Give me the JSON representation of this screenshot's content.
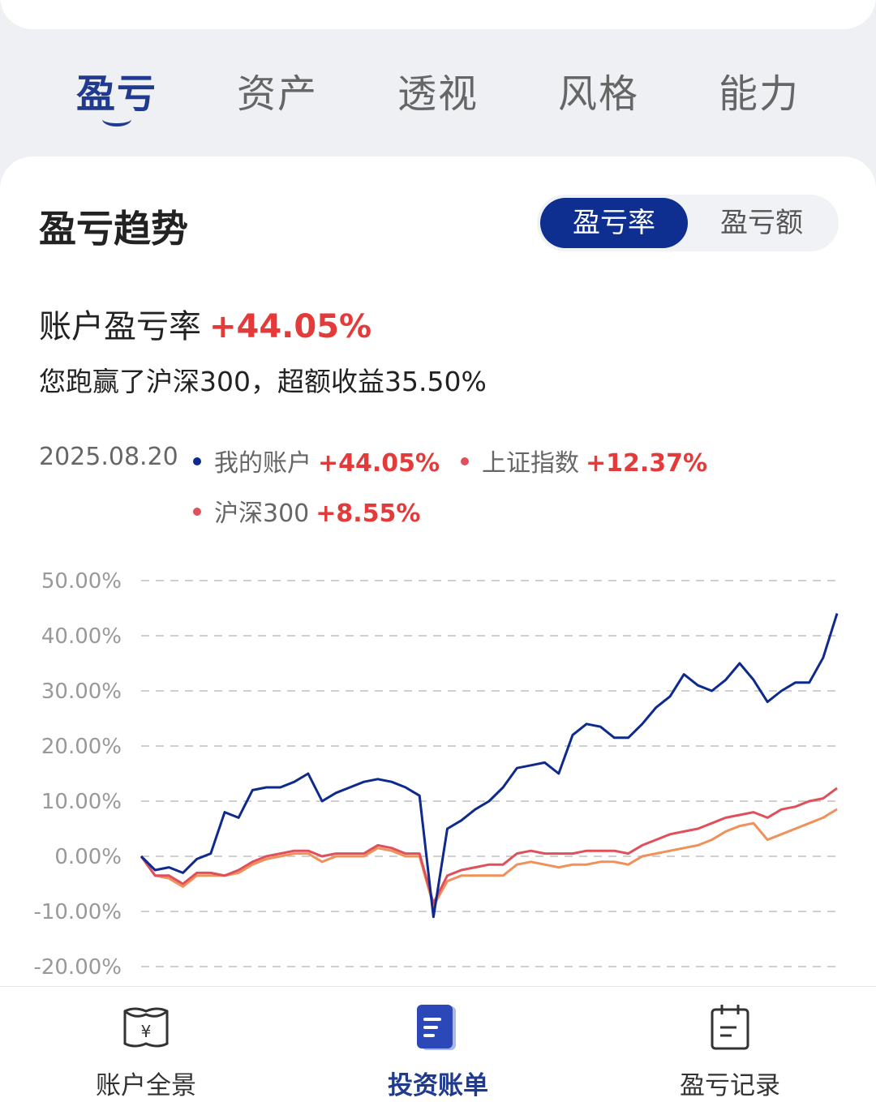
{
  "tabs": [
    {
      "label": "盈亏",
      "active": true
    },
    {
      "label": "资产",
      "active": false
    },
    {
      "label": "透视",
      "active": false
    },
    {
      "label": "风格",
      "active": false
    },
    {
      "label": "能力",
      "active": false
    }
  ],
  "section": {
    "title": "盈亏趋势",
    "toggle_active": "盈亏率",
    "toggle_inactive": "盈亏额"
  },
  "summary": {
    "rate_label": "账户盈亏率",
    "rate_value": "+44.05%",
    "description": "您跑赢了沪深300，超额收益35.50%"
  },
  "legend": {
    "date": "2025.08.20",
    "items": [
      {
        "label": "我的账户",
        "value": "+44.05%",
        "color": "#0e2a8c"
      },
      {
        "label": "上证指数",
        "value": "+12.37%",
        "color": "#e0505a"
      },
      {
        "label": "沪深300",
        "value": "+8.55%",
        "color": "#f0905a"
      }
    ]
  },
  "bottom_nav": [
    {
      "label": "账户全景",
      "icon": "wallet-icon",
      "active": false
    },
    {
      "label": "投资账单",
      "icon": "bill-icon",
      "active": true
    },
    {
      "label": "盈亏记录",
      "icon": "calendar-icon",
      "active": false
    }
  ],
  "colors": {
    "accent": "#0e2f8f",
    "positive": "#e53a3a"
  },
  "chart_data": {
    "type": "line",
    "ylim": [
      -20,
      50
    ],
    "y_ticks": [
      "50.00%",
      "40.00%",
      "30.00%",
      "20.00%",
      "10.00%",
      "0.00%",
      "-10.00%",
      "-20.00%"
    ],
    "y_tick_values": [
      50,
      40,
      30,
      20,
      10,
      0,
      -10,
      -20
    ],
    "grid": true,
    "x": [
      0,
      2,
      4,
      6,
      8,
      10,
      12,
      14,
      16,
      18,
      20,
      22,
      24,
      26,
      28,
      30,
      32,
      34,
      36,
      38,
      40,
      42,
      44,
      46,
      48,
      50,
      52,
      54,
      56,
      58,
      60,
      62,
      64,
      66,
      68,
      70,
      72,
      74,
      76,
      78,
      80,
      82,
      84,
      86,
      88,
      90,
      92,
      94,
      96,
      98,
      100
    ],
    "series": [
      {
        "name": "我的账户",
        "color": "#0e2a8c",
        "values": [
          0,
          -2.5,
          -2,
          -3,
          -0.5,
          0.5,
          8,
          7,
          12,
          12.5,
          12.5,
          13.5,
          15,
          10,
          11.5,
          12.5,
          13.5,
          14,
          13.5,
          12.5,
          11,
          -11,
          5,
          6.5,
          8.5,
          10,
          12.5,
          16,
          16.5,
          17,
          15,
          22,
          24,
          23.5,
          21.5,
          21.5,
          24,
          27,
          29,
          33,
          31,
          30,
          32,
          35,
          32,
          28,
          30,
          31.5,
          31.5,
          36,
          44.05
        ]
      },
      {
        "name": "上证指数",
        "color": "#e0505a",
        "values": [
          0,
          -3.5,
          -3.5,
          -5,
          -3,
          -3,
          -3.5,
          -2.5,
          -1,
          0,
          0.5,
          1,
          1,
          0,
          0.5,
          0.5,
          0.5,
          2,
          1.5,
          0.5,
          0.5,
          -8.5,
          -3.5,
          -2.5,
          -2,
          -1.5,
          -1.5,
          0.5,
          1,
          0.5,
          0.5,
          0.5,
          1,
          1,
          1,
          0.5,
          2,
          3,
          4,
          4.5,
          5,
          6,
          7,
          7.5,
          8,
          7,
          8.5,
          9,
          10,
          10.5,
          12.37
        ]
      },
      {
        "name": "沪深300",
        "color": "#f0905a",
        "values": [
          0,
          -3.5,
          -4,
          -5.5,
          -3.5,
          -3.5,
          -3.5,
          -3,
          -1.5,
          -0.5,
          0,
          0.5,
          0.5,
          -1,
          0,
          0,
          0,
          1.5,
          1,
          0,
          0,
          -9,
          -4.5,
          -3.5,
          -3.5,
          -3.5,
          -3.5,
          -1.5,
          -1,
          -1.5,
          -2,
          -1.5,
          -1.5,
          -1,
          -1,
          -1.5,
          0,
          0.5,
          1,
          1.5,
          2,
          3,
          4.5,
          5.5,
          6,
          3,
          4,
          5,
          6,
          7,
          8.55
        ]
      }
    ]
  }
}
